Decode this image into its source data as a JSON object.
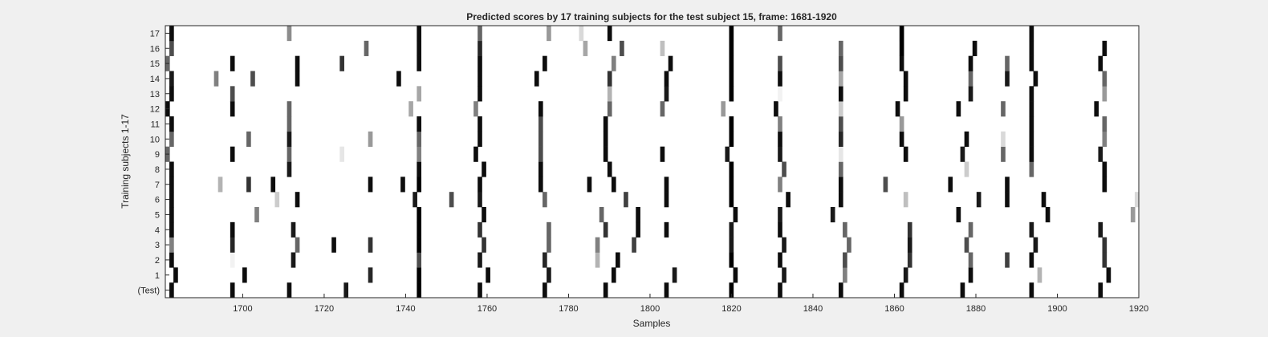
{
  "chart_data": {
    "type": "heatmap",
    "title": "Predicted scores by 17 training subjects for the test subject 15, frame: 1681-1920",
    "xlabel": "Samples",
    "ylabel": "Training subjects 1-17",
    "xlim": [
      1681,
      1920
    ],
    "x_ticks": [
      1700,
      1720,
      1740,
      1760,
      1780,
      1800,
      1820,
      1840,
      1860,
      1880,
      1900,
      1920
    ],
    "rows": [
      "(Test)",
      "1",
      "2",
      "3",
      "4",
      "5",
      "6",
      "7",
      "8",
      "9",
      "10",
      "11",
      "12",
      "13",
      "14",
      "15",
      "16",
      "17"
    ],
    "colormap": "gray-inverted",
    "background_color": "#ffffff",
    "grid": false,
    "marks": [
      {
        "row": "(Test)",
        "x": [
          [
            1682,
            0.95
          ],
          [
            1697,
            0.95
          ],
          [
            1711,
            0.95
          ],
          [
            1725,
            0.9
          ],
          [
            1743,
            1.0
          ],
          [
            1758,
            0.95
          ],
          [
            1774,
            0.95
          ],
          [
            1789,
            0.95
          ],
          [
            1804,
            0.95
          ],
          [
            1820,
            1.0
          ],
          [
            1832,
            0.95
          ],
          [
            1847,
            0.95
          ],
          [
            1862,
            0.95
          ],
          [
            1877,
            0.95
          ],
          [
            1894,
            0.95
          ],
          [
            1911,
            0.95
          ]
        ]
      },
      {
        "row": "1",
        "x": [
          [
            1683,
            0.95
          ],
          [
            1700,
            0.95
          ],
          [
            1731,
            0.85
          ],
          [
            1743,
            1.0
          ],
          [
            1760,
            0.95
          ],
          [
            1775,
            0.9
          ],
          [
            1791,
            0.95
          ],
          [
            1806,
            0.9
          ],
          [
            1821,
            0.95
          ],
          [
            1833,
            0.9
          ],
          [
            1848,
            0.5
          ],
          [
            1863,
            0.9
          ],
          [
            1879,
            0.95
          ],
          [
            1896,
            0.3
          ],
          [
            1913,
            0.95
          ]
        ]
      },
      {
        "row": "2",
        "x": [
          [
            1682,
            0.95
          ],
          [
            1697,
            0.05
          ],
          [
            1712,
            0.9
          ],
          [
            1743,
            0.7
          ],
          [
            1758,
            0.9
          ],
          [
            1774,
            0.85
          ],
          [
            1787,
            0.3
          ],
          [
            1792,
            0.95
          ],
          [
            1820,
            1.0
          ],
          [
            1832,
            0.95
          ],
          [
            1848,
            0.7
          ],
          [
            1864,
            0.8
          ],
          [
            1879,
            0.6
          ],
          [
            1888,
            0.75
          ],
          [
            1894,
            0.95
          ],
          [
            1912,
            0.8
          ]
        ]
      },
      {
        "row": "3",
        "x": [
          [
            1682,
            0.5
          ],
          [
            1697,
            0.85
          ],
          [
            1713,
            0.6
          ],
          [
            1722,
            0.95
          ],
          [
            1731,
            0.8
          ],
          [
            1743,
            1.0
          ],
          [
            1759,
            0.8
          ],
          [
            1775,
            0.6
          ],
          [
            1787,
            0.5
          ],
          [
            1796,
            0.75
          ],
          [
            1820,
            0.9
          ],
          [
            1833,
            0.9
          ],
          [
            1849,
            0.6
          ],
          [
            1864,
            0.9
          ],
          [
            1878,
            0.7
          ],
          [
            1895,
            0.9
          ],
          [
            1912,
            0.8
          ]
        ]
      },
      {
        "row": "4",
        "x": [
          [
            1682,
            0.95
          ],
          [
            1697,
            0.95
          ],
          [
            1712,
            0.9
          ],
          [
            1743,
            1.0
          ],
          [
            1758,
            0.8
          ],
          [
            1775,
            0.6
          ],
          [
            1789,
            0.8
          ],
          [
            1797,
            0.95
          ],
          [
            1804,
            0.95
          ],
          [
            1820,
            0.9
          ],
          [
            1832,
            0.95
          ],
          [
            1848,
            0.6
          ],
          [
            1864,
            0.8
          ],
          [
            1879,
            0.6
          ],
          [
            1894,
            0.9
          ],
          [
            1911,
            0.9
          ]
        ]
      },
      {
        "row": "5",
        "x": [
          [
            1682,
            0.95
          ],
          [
            1703,
            0.5
          ],
          [
            1743,
            1.0
          ],
          [
            1759,
            0.95
          ],
          [
            1788,
            0.6
          ],
          [
            1797,
            0.95
          ],
          [
            1821,
            0.95
          ],
          [
            1832,
            0.9
          ],
          [
            1845,
            0.9
          ],
          [
            1876,
            0.95
          ],
          [
            1898,
            0.95
          ],
          [
            1919,
            0.4
          ]
        ]
      },
      {
        "row": "6",
        "x": [
          [
            1682,
            0.95
          ],
          [
            1708,
            0.2
          ],
          [
            1713,
            0.95
          ],
          [
            1742,
            0.9
          ],
          [
            1751,
            0.7
          ],
          [
            1758,
            0.9
          ],
          [
            1774,
            0.6
          ],
          [
            1794,
            0.75
          ],
          [
            1804,
            0.95
          ],
          [
            1820,
            1.0
          ],
          [
            1834,
            0.95
          ],
          [
            1847,
            0.95
          ],
          [
            1863,
            0.25
          ],
          [
            1881,
            0.9
          ],
          [
            1888,
            0.95
          ],
          [
            1897,
            0.95
          ],
          [
            1920,
            0.15
          ]
        ]
      },
      {
        "row": "7",
        "x": [
          [
            1682,
            0.95
          ],
          [
            1694,
            0.3
          ],
          [
            1701,
            0.8
          ],
          [
            1707,
            0.95
          ],
          [
            1731,
            0.95
          ],
          [
            1739,
            0.95
          ],
          [
            1743,
            1.0
          ],
          [
            1758,
            0.95
          ],
          [
            1773,
            0.95
          ],
          [
            1785,
            0.95
          ],
          [
            1791,
            0.95
          ],
          [
            1804,
            0.95
          ],
          [
            1820,
            1.0
          ],
          [
            1832,
            0.5
          ],
          [
            1847,
            0.95
          ],
          [
            1858,
            0.7
          ],
          [
            1874,
            0.95
          ],
          [
            1888,
            0.95
          ],
          [
            1912,
            0.95
          ]
        ]
      },
      {
        "row": "8",
        "x": [
          [
            1682,
            0.95
          ],
          [
            1711,
            0.9
          ],
          [
            1743,
            0.95
          ],
          [
            1759,
            0.95
          ],
          [
            1773,
            0.95
          ],
          [
            1790,
            0.95
          ],
          [
            1820,
            1.0
          ],
          [
            1833,
            0.7
          ],
          [
            1847,
            0.6
          ],
          [
            1878,
            0.2
          ],
          [
            1894,
            0.6
          ],
          [
            1912,
            0.95
          ]
        ]
      },
      {
        "row": "9",
        "x": [
          [
            1681,
            0.6
          ],
          [
            1697,
            0.95
          ],
          [
            1711,
            0.6
          ],
          [
            1724,
            0.1
          ],
          [
            1743,
            0.5
          ],
          [
            1757,
            0.95
          ],
          [
            1773,
            0.7
          ],
          [
            1789,
            0.95
          ],
          [
            1803,
            0.95
          ],
          [
            1819,
            0.9
          ],
          [
            1832,
            0.9
          ],
          [
            1847,
            0.1
          ],
          [
            1863,
            0.95
          ],
          [
            1877,
            0.9
          ],
          [
            1887,
            0.6
          ],
          [
            1894,
            0.95
          ],
          [
            1911,
            0.9
          ]
        ]
      },
      {
        "row": "10",
        "x": [
          [
            1682,
            0.6
          ],
          [
            1701,
            0.6
          ],
          [
            1711,
            0.9
          ],
          [
            1731,
            0.4
          ],
          [
            1743,
            0.6
          ],
          [
            1758,
            0.95
          ],
          [
            1773,
            0.7
          ],
          [
            1789,
            0.95
          ],
          [
            1820,
            1.0
          ],
          [
            1832,
            0.95
          ],
          [
            1847,
            0.85
          ],
          [
            1862,
            0.95
          ],
          [
            1878,
            0.95
          ],
          [
            1887,
            0.15
          ],
          [
            1894,
            0.95
          ],
          [
            1912,
            0.5
          ]
        ]
      },
      {
        "row": "11",
        "x": [
          [
            1682,
            0.95
          ],
          [
            1711,
            0.6
          ],
          [
            1743,
            0.95
          ],
          [
            1758,
            0.95
          ],
          [
            1773,
            0.7
          ],
          [
            1789,
            0.95
          ],
          [
            1820,
            1.0
          ],
          [
            1832,
            0.5
          ],
          [
            1847,
            0.7
          ],
          [
            1862,
            0.4
          ],
          [
            1894,
            0.95
          ],
          [
            1912,
            0.6
          ]
        ]
      },
      {
        "row": "12",
        "x": [
          [
            1681,
            0.95
          ],
          [
            1697,
            0.95
          ],
          [
            1711,
            0.6
          ],
          [
            1741,
            0.35
          ],
          [
            1757,
            0.5
          ],
          [
            1773,
            0.95
          ],
          [
            1790,
            0.6
          ],
          [
            1803,
            0.6
          ],
          [
            1818,
            0.4
          ],
          [
            1831,
            0.95
          ],
          [
            1847,
            0.2
          ],
          [
            1861,
            0.95
          ],
          [
            1876,
            0.95
          ],
          [
            1887,
            0.6
          ],
          [
            1894,
            0.95
          ],
          [
            1910,
            0.95
          ]
        ]
      },
      {
        "row": "13",
        "x": [
          [
            1682,
            0.95
          ],
          [
            1697,
            0.7
          ],
          [
            1743,
            0.35
          ],
          [
            1758,
            0.95
          ],
          [
            1790,
            0.3
          ],
          [
            1804,
            0.9
          ],
          [
            1820,
            1.0
          ],
          [
            1832,
            0.05
          ],
          [
            1847,
            0.95
          ],
          [
            1863,
            0.95
          ],
          [
            1879,
            0.9
          ],
          [
            1894,
            0.95
          ],
          [
            1912,
            0.4
          ]
        ]
      },
      {
        "row": "14",
        "x": [
          [
            1682,
            0.9
          ],
          [
            1693,
            0.5
          ],
          [
            1702,
            0.7
          ],
          [
            1713,
            0.95
          ],
          [
            1738,
            0.95
          ],
          [
            1758,
            0.95
          ],
          [
            1772,
            0.95
          ],
          [
            1790,
            0.8
          ],
          [
            1804,
            0.95
          ],
          [
            1820,
            1.0
          ],
          [
            1832,
            0.95
          ],
          [
            1847,
            0.35
          ],
          [
            1863,
            0.95
          ],
          [
            1879,
            0.6
          ],
          [
            1888,
            0.9
          ],
          [
            1895,
            0.95
          ],
          [
            1912,
            0.6
          ]
        ]
      },
      {
        "row": "15",
        "x": [
          [
            1681,
            0.6
          ],
          [
            1697,
            0.95
          ],
          [
            1713,
            0.95
          ],
          [
            1724,
            0.8
          ],
          [
            1743,
            0.95
          ],
          [
            1758,
            0.95
          ],
          [
            1774,
            0.95
          ],
          [
            1791,
            0.5
          ],
          [
            1805,
            0.95
          ],
          [
            1820,
            1.0
          ],
          [
            1832,
            0.7
          ],
          [
            1847,
            0.7
          ],
          [
            1862,
            0.95
          ],
          [
            1879,
            0.95
          ],
          [
            1888,
            0.6
          ],
          [
            1894,
            0.95
          ],
          [
            1911,
            0.95
          ]
        ]
      },
      {
        "row": "16",
        "x": [
          [
            1682,
            0.7
          ],
          [
            1730,
            0.6
          ],
          [
            1743,
            0.95
          ],
          [
            1758,
            0.85
          ],
          [
            1784,
            0.35
          ],
          [
            1793,
            0.7
          ],
          [
            1803,
            0.25
          ],
          [
            1820,
            1.0
          ],
          [
            1847,
            0.6
          ],
          [
            1862,
            1.0
          ],
          [
            1880,
            0.95
          ],
          [
            1894,
            0.95
          ],
          [
            1912,
            0.95
          ]
        ]
      },
      {
        "row": "17",
        "x": [
          [
            1682,
            0.95
          ],
          [
            1711,
            0.45
          ],
          [
            1743,
            0.95
          ],
          [
            1758,
            0.6
          ],
          [
            1775,
            0.4
          ],
          [
            1783,
            0.15
          ],
          [
            1790,
            0.95
          ],
          [
            1820,
            1.0
          ],
          [
            1832,
            0.6
          ],
          [
            1862,
            1.0
          ],
          [
            1894,
            0.95
          ]
        ]
      }
    ]
  }
}
